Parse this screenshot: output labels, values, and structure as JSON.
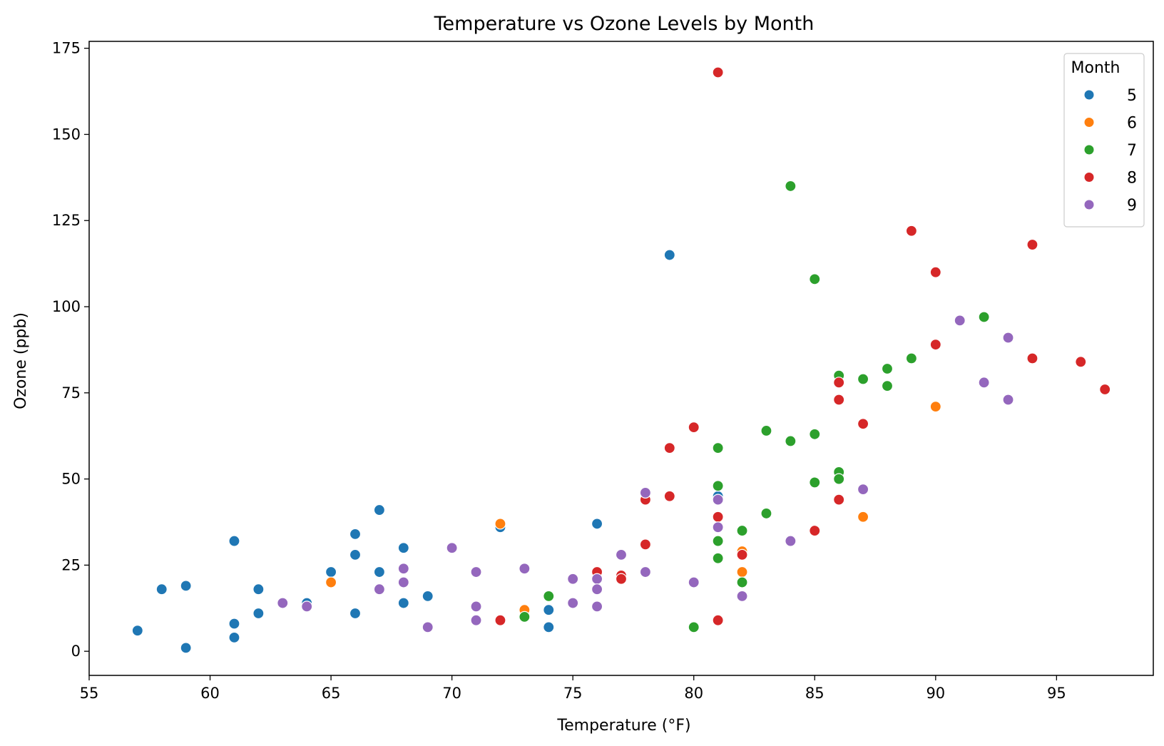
{
  "chart_data": {
    "type": "scatter",
    "title": "Temperature vs Ozone Levels by Month",
    "xlabel": "Temperature (°F)",
    "ylabel": "Ozone (ppb)",
    "xlim": [
      55,
      99
    ],
    "ylim": [
      -7,
      177
    ],
    "xticks": [
      55,
      60,
      65,
      70,
      75,
      80,
      85,
      90,
      95
    ],
    "yticks": [
      0,
      25,
      50,
      75,
      100,
      125,
      150,
      175
    ],
    "grid": false,
    "legend": {
      "title": "Month",
      "placement": "top-right"
    },
    "series": [
      {
        "name": "5",
        "color": "#1f77b4",
        "points": [
          [
            57,
            6
          ],
          [
            58,
            18
          ],
          [
            59,
            19
          ],
          [
            59,
            1
          ],
          [
            61,
            32
          ],
          [
            61,
            8
          ],
          [
            61,
            4
          ],
          [
            62,
            18
          ],
          [
            62,
            11
          ],
          [
            64,
            14
          ],
          [
            65,
            23
          ],
          [
            66,
            34
          ],
          [
            66,
            28
          ],
          [
            66,
            11
          ],
          [
            67,
            41
          ],
          [
            67,
            23
          ],
          [
            68,
            30
          ],
          [
            68,
            14
          ],
          [
            69,
            16
          ],
          [
            72,
            36
          ],
          [
            74,
            12
          ],
          [
            74,
            7
          ],
          [
            76,
            37
          ],
          [
            79,
            115
          ],
          [
            81,
            45
          ]
        ]
      },
      {
        "name": "6",
        "color": "#ff7f0e",
        "points": [
          [
            65,
            20
          ],
          [
            72,
            37
          ],
          [
            73,
            12
          ],
          [
            82,
            29
          ],
          [
            82,
            23
          ],
          [
            87,
            39
          ],
          [
            90,
            71
          ]
        ]
      },
      {
        "name": "7",
        "color": "#2ca02c",
        "points": [
          [
            73,
            10
          ],
          [
            74,
            16
          ],
          [
            80,
            7
          ],
          [
            81,
            59
          ],
          [
            81,
            48
          ],
          [
            81,
            32
          ],
          [
            81,
            27
          ],
          [
            82,
            35
          ],
          [
            82,
            20
          ],
          [
            83,
            64
          ],
          [
            83,
            40
          ],
          [
            84,
            135
          ],
          [
            84,
            61
          ],
          [
            85,
            108
          ],
          [
            85,
            63
          ],
          [
            85,
            49
          ],
          [
            86,
            80
          ],
          [
            86,
            52
          ],
          [
            86,
            50
          ],
          [
            87,
            79
          ],
          [
            88,
            82
          ],
          [
            88,
            77
          ],
          [
            89,
            85
          ],
          [
            92,
            97
          ]
        ]
      },
      {
        "name": "8",
        "color": "#d62728",
        "points": [
          [
            72,
            9
          ],
          [
            76,
            23
          ],
          [
            77,
            22
          ],
          [
            77,
            21
          ],
          [
            78,
            44
          ],
          [
            78,
            31
          ],
          [
            79,
            59
          ],
          [
            79,
            45
          ],
          [
            80,
            65
          ],
          [
            81,
            168
          ],
          [
            81,
            39
          ],
          [
            81,
            9
          ],
          [
            82,
            28
          ],
          [
            85,
            35
          ],
          [
            86,
            78
          ],
          [
            86,
            73
          ],
          [
            86,
            44
          ],
          [
            87,
            66
          ],
          [
            89,
            122
          ],
          [
            90,
            110
          ],
          [
            90,
            89
          ],
          [
            94,
            118
          ],
          [
            94,
            85
          ],
          [
            96,
            84
          ],
          [
            97,
            76
          ]
        ]
      },
      {
        "name": "9",
        "color": "#9467bd",
        "points": [
          [
            63,
            14
          ],
          [
            64,
            13
          ],
          [
            67,
            18
          ],
          [
            68,
            24
          ],
          [
            68,
            20
          ],
          [
            69,
            7
          ],
          [
            70,
            30
          ],
          [
            71,
            23
          ],
          [
            71,
            13
          ],
          [
            71,
            9
          ],
          [
            73,
            24
          ],
          [
            75,
            21
          ],
          [
            75,
            14
          ],
          [
            76,
            21
          ],
          [
            76,
            18
          ],
          [
            76,
            13
          ],
          [
            77,
            28
          ],
          [
            78,
            46
          ],
          [
            78,
            23
          ],
          [
            80,
            20
          ],
          [
            81,
            44
          ],
          [
            81,
            36
          ],
          [
            82,
            16
          ],
          [
            84,
            32
          ],
          [
            87,
            47
          ],
          [
            91,
            96
          ],
          [
            92,
            78
          ],
          [
            93,
            91
          ],
          [
            93,
            73
          ]
        ]
      }
    ]
  }
}
